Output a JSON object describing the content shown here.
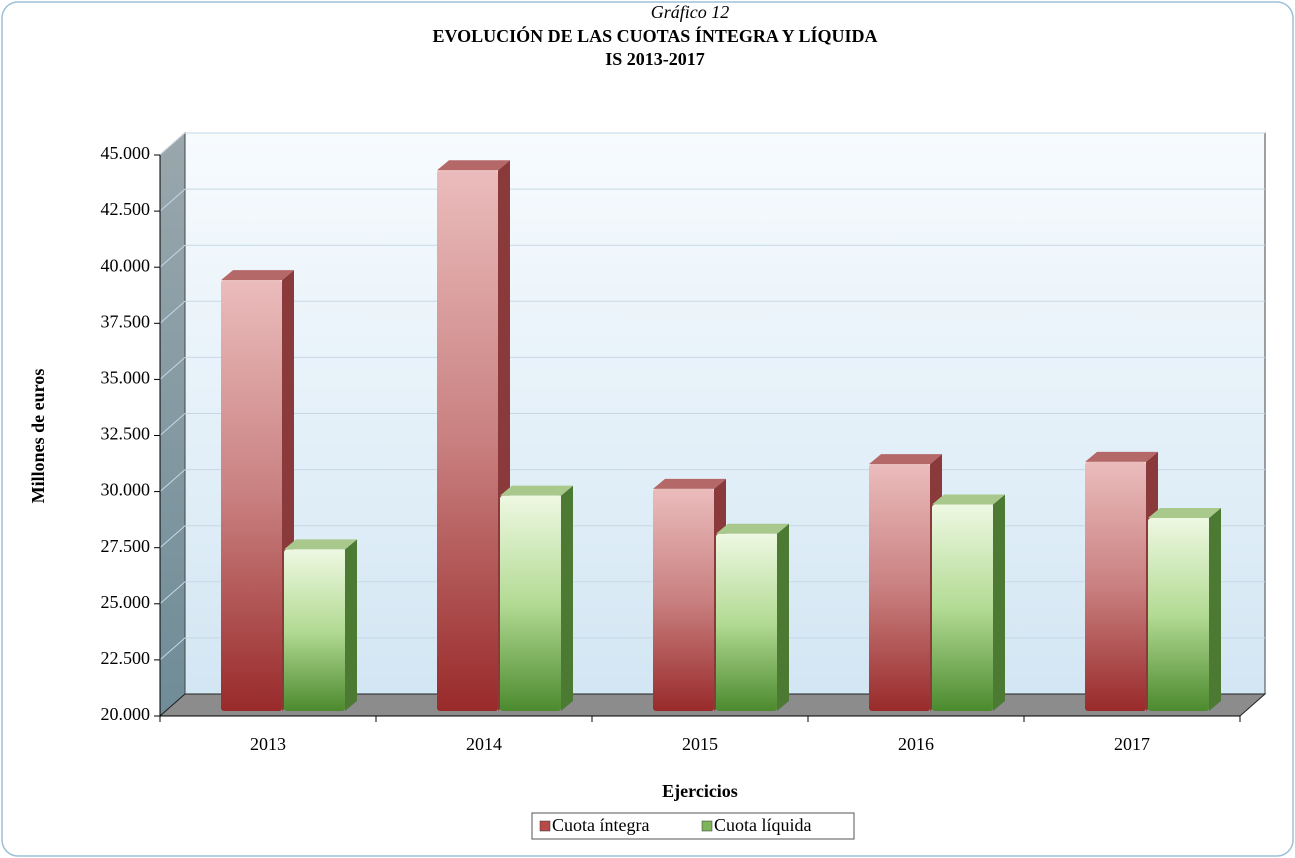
{
  "chart_data": {
    "type": "bar",
    "title": "Gráfico 12",
    "subtitle": [
      "EVOLUCIÓN DE LAS CUOTAS ÍNTEGRA Y LÍQUIDA",
      "IS 2013-2017"
    ],
    "x_label": "Ejercicios",
    "y_label": "Millones de euros",
    "categories": [
      "2013",
      "2014",
      "2015",
      "2016",
      "2017"
    ],
    "series": [
      {
        "name": "Cuota íntegra",
        "color": "#b84a4a",
        "values": [
          39200,
          44100,
          29900,
          31000,
          31100
        ]
      },
      {
        "name": "Cuota líquida",
        "color": "#7fb55a",
        "values": [
          27200,
          29600,
          27900,
          29200,
          28600
        ]
      }
    ],
    "ylim": [
      20000,
      45000
    ],
    "yticks": [
      {
        "value": 20000,
        "label": "20.000"
      },
      {
        "value": 22500,
        "label": "22.500"
      },
      {
        "value": 25000,
        "label": "25.000"
      },
      {
        "value": 27500,
        "label": "27.500"
      },
      {
        "value": 30000,
        "label": "30.000"
      },
      {
        "value": 32500,
        "label": "32.500"
      },
      {
        "value": 35000,
        "label": "35.000"
      },
      {
        "value": 37500,
        "label": "37.500"
      },
      {
        "value": 40000,
        "label": "40.000"
      },
      {
        "value": 42500,
        "label": "42.500"
      },
      {
        "value": 45000,
        "label": "45.000"
      }
    ],
    "grid": true,
    "legend": "bottom"
  }
}
